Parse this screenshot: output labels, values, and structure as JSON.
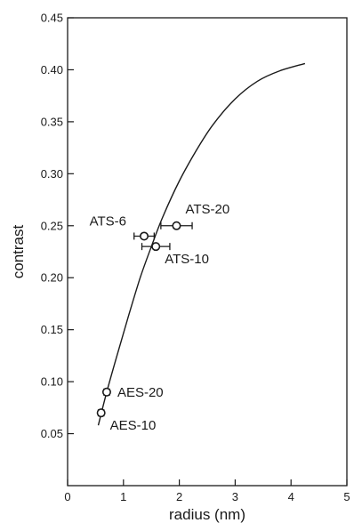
{
  "chart_data": {
    "type": "scatter",
    "xlabel": "radius (nm)",
    "ylabel": "contrast",
    "xlim": [
      0,
      5
    ],
    "ylim": [
      0,
      0.45
    ],
    "x_ticks": [
      0,
      1,
      2,
      3,
      4,
      5
    ],
    "y_ticks": [
      0.05,
      0.1,
      0.15,
      0.2,
      0.25,
      0.3,
      0.35,
      0.4,
      0.45
    ],
    "y_tick_labels": [
      "0.05",
      "0.10",
      "0.15",
      "0.20",
      "0.25",
      "0.30",
      "0.35",
      "0.40",
      "0.45"
    ],
    "grid": false,
    "legend": "none",
    "points": [
      {
        "label": "AES-10",
        "x": 0.6,
        "y": 0.07,
        "x_err": 0.05,
        "label_pos": "below-right"
      },
      {
        "label": "AES-20",
        "x": 0.7,
        "y": 0.09,
        "x_err": 0.05,
        "label_pos": "right"
      },
      {
        "label": "ATS-6",
        "x": 1.37,
        "y": 0.24,
        "x_err": 0.18,
        "label_pos": "left-above"
      },
      {
        "label": "ATS-10",
        "x": 1.58,
        "y": 0.23,
        "x_err": 0.25,
        "label_pos": "below-right"
      },
      {
        "label": "ATS-20",
        "x": 1.95,
        "y": 0.25,
        "x_err": 0.28,
        "label_pos": "above-right"
      }
    ],
    "fit_curve": {
      "x": [
        0.55,
        0.7,
        0.9,
        1.1,
        1.3,
        1.5,
        1.7,
        2.0,
        2.3,
        2.6,
        3.0,
        3.4,
        3.8,
        4.25
      ],
      "y": [
        0.058,
        0.09,
        0.128,
        0.165,
        0.2,
        0.23,
        0.258,
        0.293,
        0.322,
        0.347,
        0.372,
        0.389,
        0.399,
        0.406
      ]
    },
    "colors": {
      "ink": "#1a1a1a",
      "marker_fill": "#ffffff"
    }
  }
}
